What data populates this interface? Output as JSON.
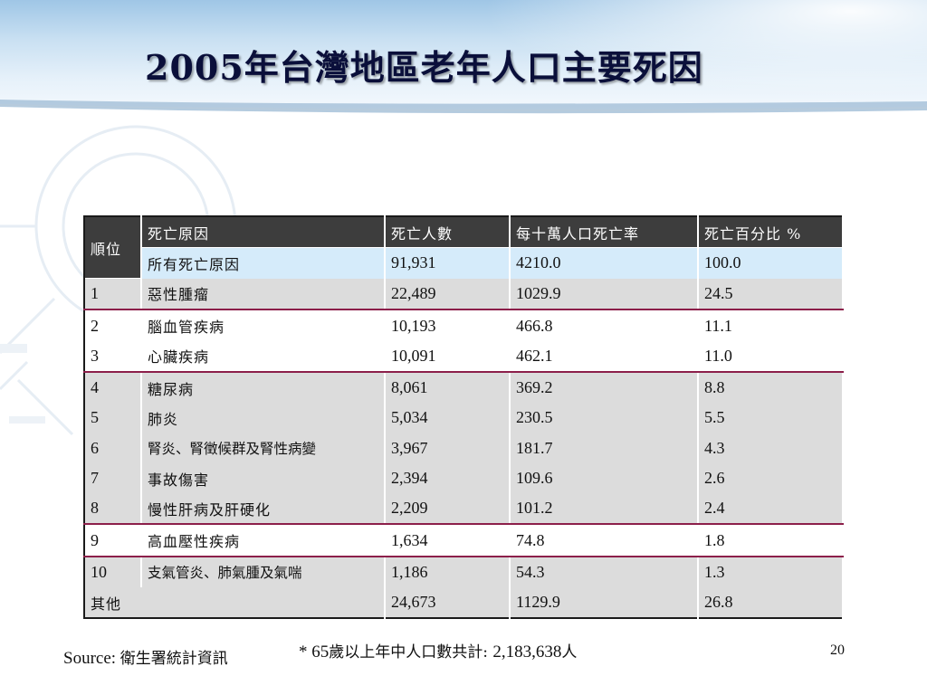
{
  "slide": {
    "title": "2005年台灣地區老年人口主要死因",
    "page_number": "20"
  },
  "table": {
    "headers": {
      "rank": "順位",
      "cause": "死亡原因",
      "deaths": "死亡人數",
      "rate": "每十萬人口死亡率",
      "percent": "死亡百分比 %"
    },
    "all_causes": {
      "cause": "所有死亡原因",
      "deaths": "91,931",
      "rate": "4210.0",
      "percent": "100.0"
    },
    "rows": [
      {
        "rank": "1",
        "cause": "惡性腫瘤",
        "deaths": "22,489",
        "rate": "1029.9",
        "percent": "24.5"
      },
      {
        "rank": "2",
        "cause": "腦血管疾病",
        "deaths": "10,193",
        "rate": "466.8",
        "percent": "11.1"
      },
      {
        "rank": "3",
        "cause": "心臟疾病",
        "deaths": "10,091",
        "rate": "462.1",
        "percent": "11.0"
      },
      {
        "rank": "4",
        "cause": "糖尿病",
        "deaths": "8,061",
        "rate": "369.2",
        "percent": "8.8"
      },
      {
        "rank": "5",
        "cause": "肺炎",
        "deaths": "5,034",
        "rate": "230.5",
        "percent": "5.5"
      },
      {
        "rank": "6",
        "cause": "腎炎、腎徵候群及腎性病變",
        "deaths": "3,967",
        "rate": "181.7",
        "percent": "4.3"
      },
      {
        "rank": "7",
        "cause": "事故傷害",
        "deaths": "2,394",
        "rate": "109.6",
        "percent": "2.6"
      },
      {
        "rank": "8",
        "cause": "慢性肝病及肝硬化",
        "deaths": "2,209",
        "rate": "101.2",
        "percent": "2.4"
      },
      {
        "rank": "9",
        "cause": "高血壓性疾病",
        "deaths": "1,634",
        "rate": "74.8",
        "percent": "1.8"
      },
      {
        "rank": "10",
        "cause": "支氣管炎、肺氣腫及氣喘",
        "deaths": "1,186",
        "rate": "54.3",
        "percent": "1.3"
      }
    ],
    "others": {
      "label": "其他",
      "deaths": "24,673",
      "rate": "1129.9",
      "percent": "26.8"
    }
  },
  "footer": {
    "source_label": "Source: ",
    "source_value": "衛生署統計資訊",
    "note_prefix": "* 65",
    "note_middle": "歲以上年中人口數共計: ",
    "note_number": "2,183,638",
    "note_suffix": "人"
  },
  "colors": {
    "header_dark": "#3d3d3d",
    "highlight_row": "#d5ebfa",
    "row_gray": "#dcdcdc",
    "separator": "#8c1f4a",
    "title_text": "#0a0f3a"
  }
}
